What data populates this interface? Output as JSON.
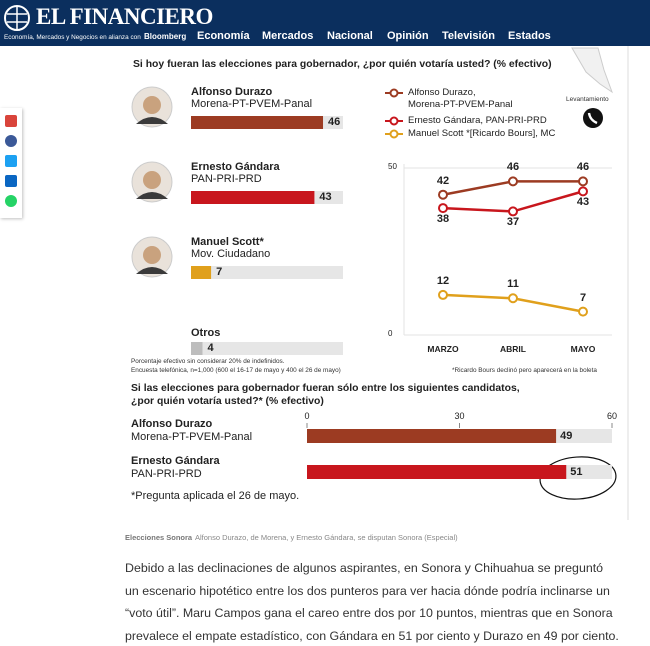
{
  "header": {
    "logo": "EL FINANCIERO",
    "tagline": "Economía, Mercados y Negocios en alianza con",
    "partner": "Bloomberg",
    "nav": [
      "Economía",
      "Mercados",
      "Nacional",
      "Opinión",
      "Televisión",
      "Estados"
    ]
  },
  "infographic": {
    "corner_label": "Levantamiento",
    "question": "Si hoy fueran las elecciones para gobernador, ¿por quién votaría usted? (% efectivo)",
    "candidates": [
      {
        "name": "Alfonso Durazo",
        "party": "Morena-PT-PVEM-Panal",
        "value": 46,
        "color": "#9c3b22"
      },
      {
        "name": "Ernesto Gándara",
        "party": "PAN-PRI-PRD",
        "value": 43,
        "color": "#c8161d"
      },
      {
        "name": "Manuel Scott*",
        "party": "Mov. Ciudadano",
        "value": 7,
        "color": "#e0a01c"
      },
      {
        "name": "Otros",
        "value": 4,
        "color": "#bdbdbd"
      }
    ],
    "notes": [
      "Porcentaje efectivo sin considerar 20% de indefinidos.",
      "Encuesta telefónica, n=1,000 (600 el 16-17 de mayo y 400 el 26 de mayo)"
    ],
    "trend": {
      "type": "line",
      "categories": [
        "MARZO",
        "ABRIL",
        "MAYO"
      ],
      "series": [
        {
          "name": "Alfonso Durazo,\nMorena-PT-PVEM-Panal",
          "color": "#9c3b22",
          "values": [
            42,
            46,
            46
          ]
        },
        {
          "name": "Ernesto Gándara, PAN-PRI-PRD",
          "color": "#c8161d",
          "values": [
            38,
            37,
            43
          ]
        },
        {
          "name": "Manuel Scott *[Ricardo Bours], MC",
          "color": "#e0a01c",
          "values": [
            12,
            11,
            7
          ]
        }
      ],
      "ylim": [
        0,
        50
      ],
      "yticks": [
        0,
        50
      ],
      "note": "*Ricardo Bours declinó pero aparecerá en la boleta"
    },
    "runoff": {
      "type": "bar",
      "question": "Si las elecciones para gobernador fueran sólo entre los siguientes candidatos,\n¿por quién votaría usted?* (% efectivo)",
      "xlim": [
        0,
        60
      ],
      "xticks": [
        0,
        30,
        60
      ],
      "candidates": [
        {
          "name": "Alfonso Durazo",
          "party": "Morena-PT-PVEM-Panal",
          "value": 49,
          "color": "#9c3b22"
        },
        {
          "name": "Ernesto Gándara",
          "party": "PAN-PRI-PRD",
          "value": 51,
          "color": "#c8161d"
        }
      ],
      "note": "*Pregunta aplicada el 26 de mayo."
    }
  },
  "article": {
    "caption_label": "Elecciones Sonora",
    "caption": "Alfonso Durazo, de Morena, y Ernesto Gándara, se disputan Sonora (Especial)",
    "paragraph": "Debido a las declinaciones de algunos aspirantes, en Sonora y Chihuahua se preguntó un escenario hipotético entre los dos punteros para ver hacia dónde podría inclinarse un “voto útil”. Maru Campos gana el careo entre dos por 10 puntos, mientras que en Sonora prevalece el empate estadístico, con Gándara en 51 por ciento y Durazo en 49 por ciento."
  }
}
